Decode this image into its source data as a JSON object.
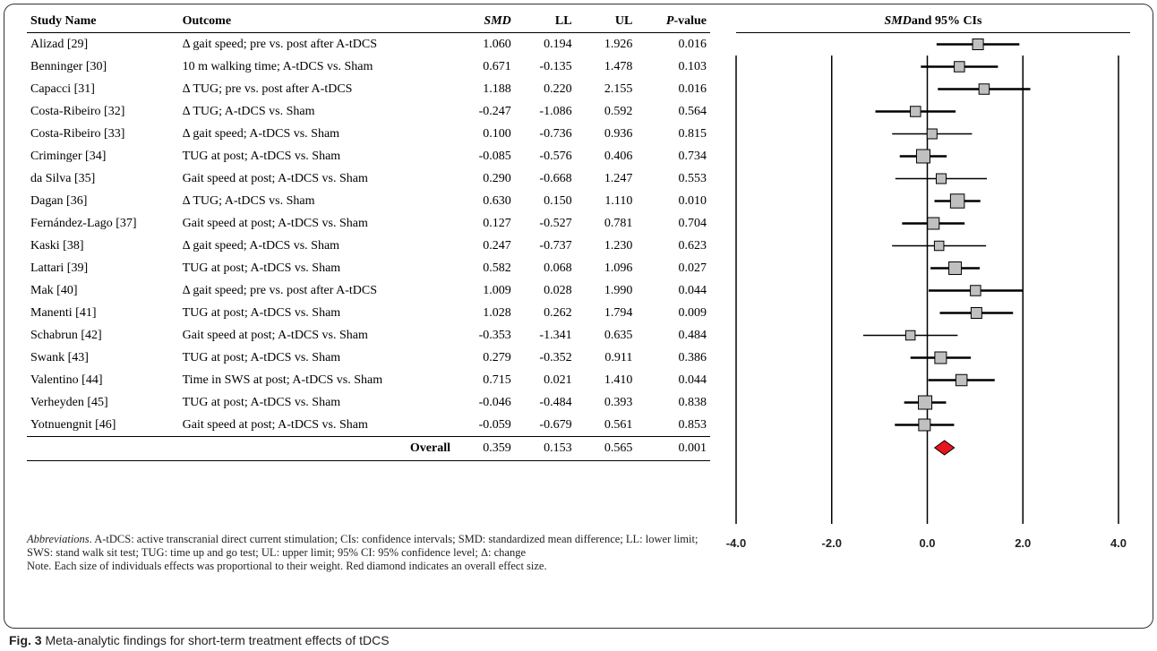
{
  "table": {
    "headers": {
      "study": "Study Name",
      "outcome": "Outcome",
      "smd": "SMD",
      "ll": "LL",
      "ul": "UL",
      "p": "P-value",
      "p_italic": "P",
      "p_rest": "-value"
    },
    "rows": [
      {
        "study": "Alizad [29]",
        "outcome": "Δ gait speed; pre vs. post after A-tDCS",
        "smd": "1.060",
        "ll": "0.194",
        "ul": "1.926",
        "p": "0.016"
      },
      {
        "study": "Benninger [30]",
        "outcome": "10 m walking time; A-tDCS vs. Sham",
        "smd": "0.671",
        "ll": "-0.135",
        "ul": "1.478",
        "p": "0.103"
      },
      {
        "study": "Capacci [31]",
        "outcome": "Δ TUG; pre vs. post after A-tDCS",
        "smd": "1.188",
        "ll": "0.220",
        "ul": "2.155",
        "p": "0.016"
      },
      {
        "study": "Costa-Ribeiro [32]",
        "outcome": "Δ TUG; A-tDCS vs. Sham",
        "smd": "-0.247",
        "ll": "-1.086",
        "ul": "0.592",
        "p": "0.564"
      },
      {
        "study": "Costa-Ribeiro [33]",
        "outcome": "Δ gait speed; A-tDCS vs. Sham",
        "smd": "0.100",
        "ll": "-0.736",
        "ul": "0.936",
        "p": "0.815"
      },
      {
        "study": "Criminger [34]",
        "outcome": "TUG at post; A-tDCS vs. Sham",
        "smd": "-0.085",
        "ll": "-0.576",
        "ul": "0.406",
        "p": "0.734"
      },
      {
        "study": "da Silva [35]",
        "outcome": "Gait speed at post; A-tDCS vs. Sham",
        "smd": "0.290",
        "ll": "-0.668",
        "ul": "1.247",
        "p": "0.553"
      },
      {
        "study": "Dagan [36]",
        "outcome": "Δ TUG; A-tDCS vs. Sham",
        "smd": "0.630",
        "ll": "0.150",
        "ul": "1.110",
        "p": "0.010"
      },
      {
        "study": "Fernández-Lago [37]",
        "outcome": "Gait speed at post; A-tDCS vs. Sham",
        "smd": "0.127",
        "ll": "-0.527",
        "ul": "0.781",
        "p": "0.704"
      },
      {
        "study": "Kaski [38]",
        "outcome": "Δ gait speed; A-tDCS vs. Sham",
        "smd": "0.247",
        "ll": "-0.737",
        "ul": "1.230",
        "p": "0.623"
      },
      {
        "study": "Lattari [39]",
        "outcome": "TUG at post; A-tDCS vs. Sham",
        "smd": "0.582",
        "ll": "0.068",
        "ul": "1.096",
        "p": "0.027"
      },
      {
        "study": "Mak [40]",
        "outcome": "Δ gait speed; pre vs. post after A-tDCS",
        "smd": "1.009",
        "ll": "0.028",
        "ul": "1.990",
        "p": "0.044"
      },
      {
        "study": "Manenti [41]",
        "outcome": "TUG at post; A-tDCS vs. Sham",
        "smd": "1.028",
        "ll": "0.262",
        "ul": "1.794",
        "p": "0.009"
      },
      {
        "study": "Schabrun [42]",
        "outcome": "Gait speed at post; A-tDCS vs. Sham",
        "smd": "-0.353",
        "ll": "-1.341",
        "ul": "0.635",
        "p": "0.484"
      },
      {
        "study": "Swank [43]",
        "outcome": "TUG at post; A-tDCS vs. Sham",
        "smd": "0.279",
        "ll": "-0.352",
        "ul": "0.911",
        "p": "0.386"
      },
      {
        "study": "Valentino [44]",
        "outcome": "Time in SWS at post; A-tDCS vs. Sham",
        "smd": "0.715",
        "ll": "0.021",
        "ul": "1.410",
        "p": "0.044"
      },
      {
        "study": "Verheyden [45]",
        "outcome": "TUG at post; A-tDCS vs. Sham",
        "smd": "-0.046",
        "ll": "-0.484",
        "ul": "0.393",
        "p": "0.838"
      },
      {
        "study": "Yotnuengnit [46]",
        "outcome": "Gait speed at post; A-tDCS vs. Sham",
        "smd": "-0.059",
        "ll": "-0.679",
        "ul": "0.561",
        "p": "0.853"
      }
    ],
    "overall": {
      "label": "Overall",
      "smd": "0.359",
      "ll": "0.153",
      "ul": "0.565",
      "p": "0.001"
    }
  },
  "notes": {
    "abbrev_label": "Abbreviations",
    "abbrev_text": ". A-tDCS: active transcranial direct current stimulation; CIs: confidence intervals; SMD: standardized mean difference; LL: lower limit; SWS: stand walk sit test; TUG: time up and go test; UL: upper limit; 95% CI: 95% confidence level; Δ: change",
    "note_text": "Note. Each size of individuals effects was proportional to their weight. Red diamond indicates an overall effect size."
  },
  "caption": {
    "label": "Fig. 3",
    "text": " Meta-analytic findings for short-term treatment effects of tDCS"
  },
  "chart_data": {
    "type": "forest",
    "title": "SMD and 95% CIs",
    "title_italic": "SMD",
    "title_rest": " and 95% CIs",
    "xlim": [
      -4.0,
      4.0
    ],
    "x_ticks": [
      -4.0,
      -2.0,
      0.0,
      2.0,
      4.0
    ],
    "x_tick_labels": [
      "-4.0",
      "-2.0",
      "0.0",
      "2.0",
      "4.0"
    ],
    "studies": [
      {
        "smd": 1.06,
        "ll": 0.194,
        "ul": 1.926,
        "weight": 0.6
      },
      {
        "smd": 0.671,
        "ll": -0.135,
        "ul": 1.478,
        "weight": 0.55
      },
      {
        "smd": 1.188,
        "ll": 0.22,
        "ul": 2.155,
        "weight": 0.55
      },
      {
        "smd": -0.247,
        "ll": -1.086,
        "ul": 0.592,
        "weight": 0.55
      },
      {
        "smd": 0.1,
        "ll": -0.736,
        "ul": 0.936,
        "weight": 0.5
      },
      {
        "smd": -0.085,
        "ll": -0.576,
        "ul": 0.406,
        "weight": 0.9
      },
      {
        "smd": 0.29,
        "ll": -0.668,
        "ul": 1.247,
        "weight": 0.5
      },
      {
        "smd": 0.63,
        "ll": 0.15,
        "ul": 1.11,
        "weight": 0.95
      },
      {
        "smd": 0.127,
        "ll": -0.527,
        "ul": 0.781,
        "weight": 0.7
      },
      {
        "smd": 0.247,
        "ll": -0.737,
        "ul": 1.23,
        "weight": 0.45
      },
      {
        "smd": 0.582,
        "ll": 0.068,
        "ul": 1.096,
        "weight": 0.8
      },
      {
        "smd": 1.009,
        "ll": 0.028,
        "ul": 1.99,
        "weight": 0.55
      },
      {
        "smd": 1.028,
        "ll": 0.262,
        "ul": 1.794,
        "weight": 0.6
      },
      {
        "smd": -0.353,
        "ll": -1.341,
        "ul": 0.635,
        "weight": 0.45
      },
      {
        "smd": 0.279,
        "ll": -0.352,
        "ul": 0.911,
        "weight": 0.7
      },
      {
        "smd": 0.715,
        "ll": 0.021,
        "ul": 1.41,
        "weight": 0.65
      },
      {
        "smd": -0.046,
        "ll": -0.484,
        "ul": 0.393,
        "weight": 0.9
      },
      {
        "smd": -0.059,
        "ll": -0.679,
        "ul": 0.561,
        "weight": 0.7
      }
    ],
    "overall": {
      "smd": 0.359,
      "ll": 0.153,
      "ul": 0.565
    },
    "colors": {
      "box": "#c0c0c0",
      "diamond": "#e8141d",
      "line": "#000000"
    },
    "grid": true
  }
}
